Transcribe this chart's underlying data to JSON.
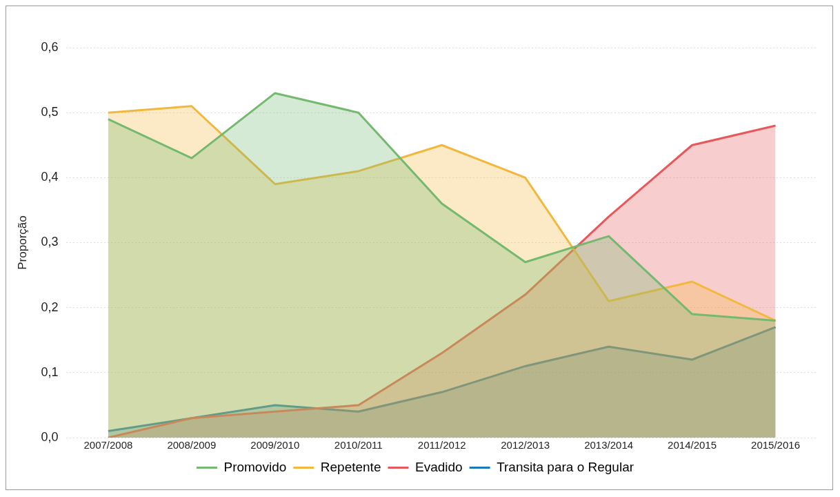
{
  "chart_data": {
    "type": "area",
    "ylabel": "Proporção",
    "categories": [
      "2007/2008",
      "2008/2009",
      "2009/2010",
      "2010/2011",
      "2011/2012",
      "2012/2013",
      "2013/2014",
      "2014/2015",
      "2015/2016"
    ],
    "series": [
      {
        "name": "Promovido",
        "color": "#74b96f",
        "values": [
          0.49,
          0.43,
          0.53,
          0.5,
          0.36,
          0.27,
          0.31,
          0.19,
          0.18
        ]
      },
      {
        "name": "Repetente",
        "color": "#f2b83e",
        "values": [
          0.5,
          0.51,
          0.39,
          0.41,
          0.45,
          0.4,
          0.21,
          0.24,
          0.18
        ]
      },
      {
        "name": "Evadido",
        "color": "#e8585a",
        "values": [
          0.0,
          0.03,
          0.04,
          0.05,
          0.13,
          0.22,
          0.34,
          0.45,
          0.48
        ]
      },
      {
        "name": "Transita para o Regular",
        "color": "#1b7bb8",
        "values": [
          0.01,
          0.03,
          0.05,
          0.04,
          0.07,
          0.11,
          0.14,
          0.12,
          0.17
        ]
      }
    ],
    "ylim": [
      0,
      0.6
    ],
    "yticks": [
      {
        "value": 0,
        "label": "0,0"
      },
      {
        "value": 0.1,
        "label": "0,1"
      },
      {
        "value": 0.2,
        "label": "0,2"
      },
      {
        "value": 0.3,
        "label": "0,3"
      },
      {
        "value": 0.4,
        "label": "0,4"
      },
      {
        "value": 0.5,
        "label": "0,5"
      },
      {
        "value": 0.6,
        "label": "0,6"
      }
    ],
    "grid": "y",
    "legend": "bottom",
    "marker": "none",
    "line_style": "solid"
  }
}
